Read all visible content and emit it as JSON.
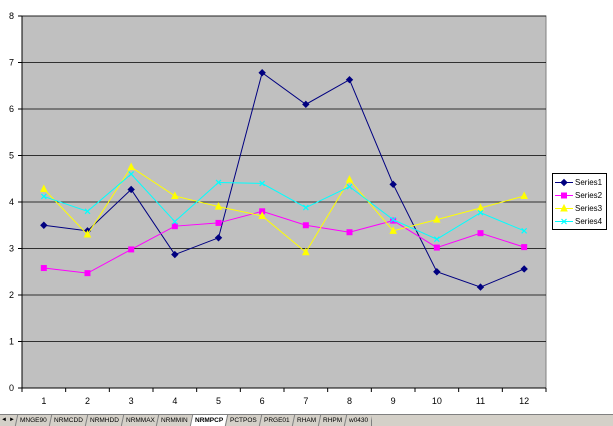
{
  "chart_data": {
    "type": "line",
    "title": "",
    "xlabel": "",
    "ylabel": "",
    "categories": [
      "1",
      "2",
      "3",
      "4",
      "5",
      "6",
      "7",
      "8",
      "9",
      "10",
      "11",
      "12"
    ],
    "ylim": [
      0,
      8
    ],
    "yticks": [
      0,
      1,
      2,
      3,
      4,
      5,
      6,
      7,
      8
    ],
    "grid": true,
    "legend_position": "right",
    "plot_background": "#c0c0c0",
    "series": [
      {
        "name": "Series1",
        "color": "#000080",
        "marker": "diamond",
        "values": [
          3.5,
          3.38,
          4.27,
          2.87,
          3.23,
          6.78,
          6.1,
          6.63,
          4.38,
          2.5,
          2.17,
          2.56
        ]
      },
      {
        "name": "Series2",
        "color": "#ff00ff",
        "marker": "square",
        "values": [
          2.58,
          2.47,
          2.98,
          3.48,
          3.55,
          3.8,
          3.5,
          3.35,
          3.6,
          3.02,
          3.33,
          3.03
        ]
      },
      {
        "name": "Series3",
        "color": "#ffff00",
        "marker": "triangle",
        "values": [
          4.28,
          3.3,
          4.75,
          4.13,
          3.9,
          3.7,
          2.92,
          4.48,
          3.38,
          3.62,
          3.87,
          4.13
        ]
      },
      {
        "name": "Series4",
        "color": "#00ffff",
        "marker": "x",
        "values": [
          4.12,
          3.8,
          4.6,
          3.58,
          4.42,
          4.4,
          3.88,
          4.33,
          3.62,
          3.2,
          3.77,
          3.38
        ]
      }
    ]
  },
  "sheet_tabs": {
    "nav_buttons": [
      "◄",
      "►"
    ],
    "tabs": [
      "MNGE90",
      "NRMCDD",
      "NRMHDD",
      "NRMMAX",
      "NRMMIN",
      "NRMPCP",
      "PCTPOS",
      "PRGE01",
      "RHAM",
      "RHPM",
      "w0430"
    ],
    "active": "NRMPCP"
  }
}
